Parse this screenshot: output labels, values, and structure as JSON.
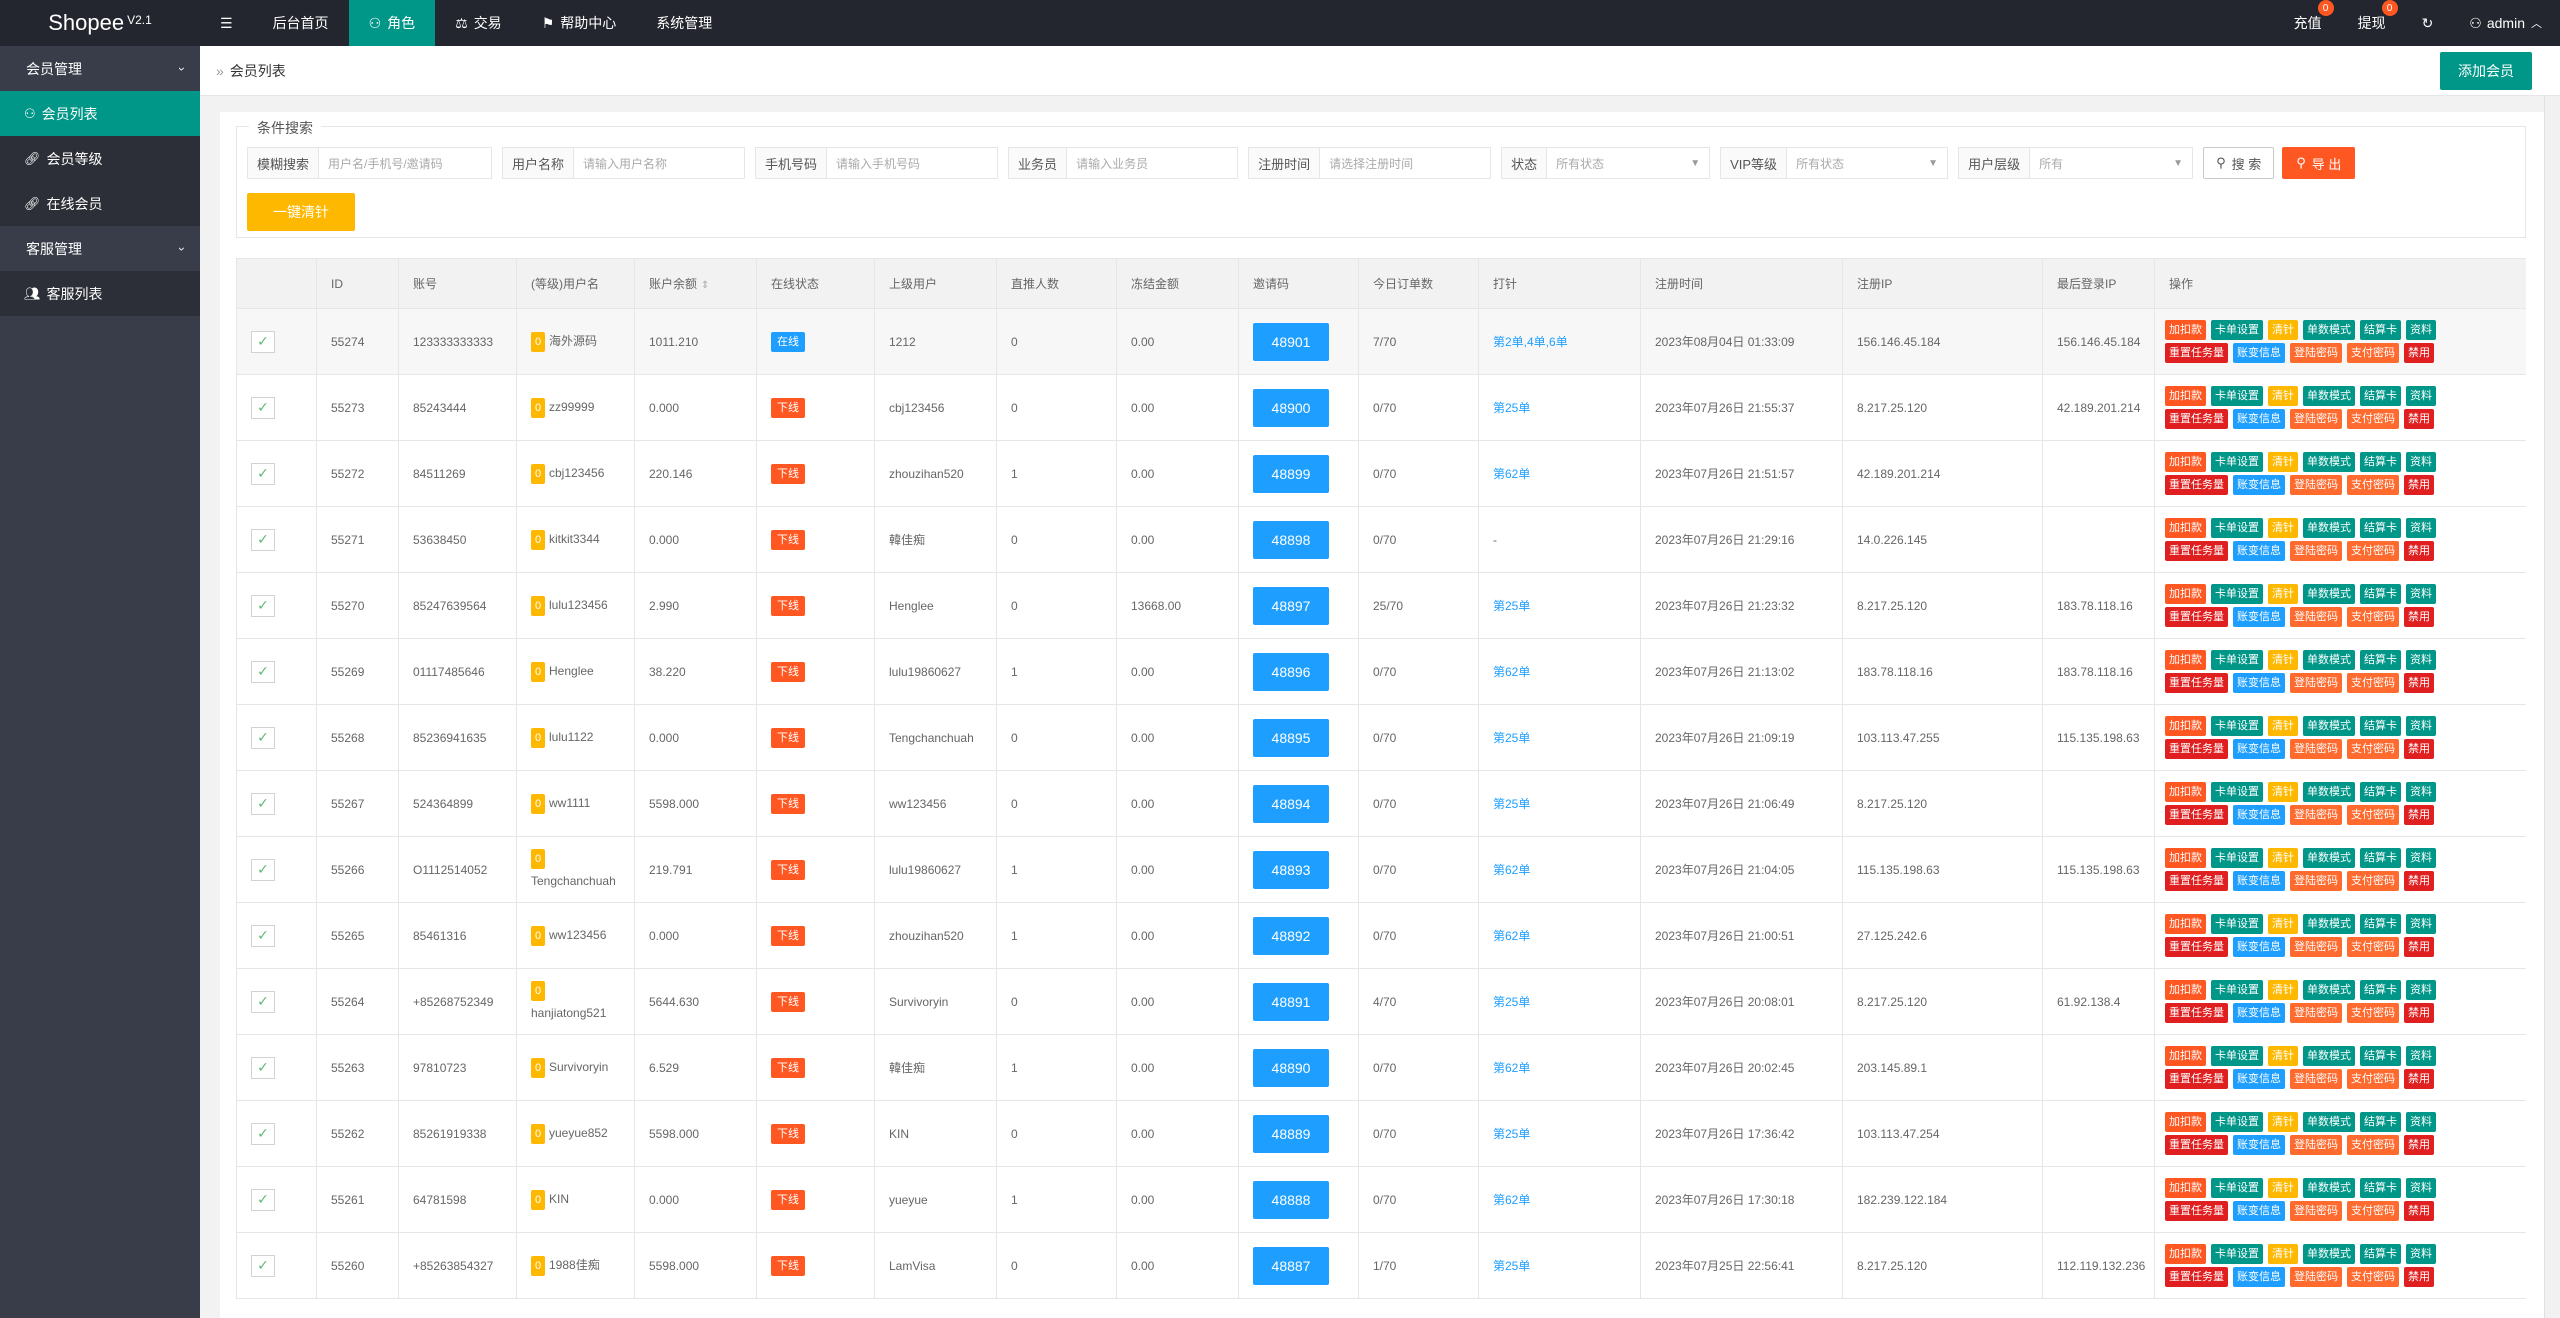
{
  "header": {
    "logo": "Shopee",
    "version": "V2.1",
    "menu_icon": "☰",
    "nav": [
      {
        "label": "后台首页",
        "icon": ""
      },
      {
        "label": "角色",
        "icon": "user-icon"
      },
      {
        "label": "交易",
        "icon": "scale-icon"
      },
      {
        "label": "帮助中心",
        "icon": "flag-icon"
      },
      {
        "label": "系统管理",
        "icon": ""
      }
    ],
    "recharge": "充值",
    "recharge_count": "0",
    "withdraw": "提现",
    "withdraw_count": "0",
    "user": "admin"
  },
  "sidebar": {
    "group1": "会员管理",
    "items1": [
      "会员列表",
      "会员等级",
      "在线会员"
    ],
    "group2": "客服管理",
    "items2": [
      "客服列表"
    ]
  },
  "breadcrumb": "会员列表",
  "add_button": "添加会员",
  "search": {
    "legend": "条件搜索",
    "fuzzy_label": "模糊搜索",
    "fuzzy_placeholder": "用户名/手机号/邀请码",
    "username_label": "用户名称",
    "username_placeholder": "请输入用户名称",
    "phone_label": "手机号码",
    "phone_placeholder": "请输入手机号码",
    "agent_label": "业务员",
    "agent_placeholder": "请输入业务员",
    "regtime_label": "注册时间",
    "regtime_placeholder": "请选择注册时间",
    "status_label": "状态",
    "status_value": "所有状态",
    "vip_label": "VIP等级",
    "vip_value": "所有状态",
    "tier_label": "用户层级",
    "tier_value": "所有",
    "search_btn": "搜 索",
    "export_btn": "导 出",
    "clear_btn": "一键清针"
  },
  "table": {
    "columns": [
      "",
      "ID",
      "账号",
      "(等级)用户名",
      "账户余额",
      "在线状态",
      "上级用户",
      "直推人数",
      "冻结金额",
      "邀请码",
      "今日订单数",
      "打针",
      "注册时间",
      "注册IP",
      "最后登录IP",
      "操作"
    ],
    "ops_row1": [
      "加扣款",
      "卡单设置",
      "清针",
      "单数模式",
      "结算卡",
      "资料"
    ],
    "ops_row2": [
      "重置任务量",
      "账变信息",
      "登陆密码",
      "支付密码",
      "禁用"
    ],
    "rows": [
      {
        "id": "55274",
        "account": "123333333333",
        "level": "0",
        "username": "海外源码",
        "balance": "1011.210",
        "status": "在线",
        "online": true,
        "parent": "1212",
        "direct": "0",
        "frozen": "0.00",
        "invite": "48901",
        "orders": "7/70",
        "pin": "第2单,4单,6单",
        "regtime": "2023年08月04日 01:33:09",
        "regip": "156.146.45.184",
        "lastip": "156.146.45.184"
      },
      {
        "id": "55273",
        "account": "85243444",
        "level": "0",
        "username": "zz99999",
        "balance": "0.000",
        "status": "下线",
        "online": false,
        "parent": "cbj123456",
        "direct": "0",
        "frozen": "0.00",
        "invite": "48900",
        "orders": "0/70",
        "pin": "第25单",
        "regtime": "2023年07月26日 21:55:37",
        "regip": "8.217.25.120",
        "lastip": "42.189.201.214"
      },
      {
        "id": "55272",
        "account": "84511269",
        "level": "0",
        "username": "cbj123456",
        "balance": "220.146",
        "status": "下线",
        "online": false,
        "parent": "zhouzihan520",
        "direct": "1",
        "frozen": "0.00",
        "invite": "48899",
        "orders": "0/70",
        "pin": "第62单",
        "regtime": "2023年07月26日 21:51:57",
        "regip": "42.189.201.214",
        "lastip": ""
      },
      {
        "id": "55271",
        "account": "53638450",
        "level": "0",
        "username": "kitkit3344",
        "balance": "0.000",
        "status": "下线",
        "online": false,
        "parent": "韓佳痴",
        "direct": "0",
        "frozen": "0.00",
        "invite": "48898",
        "orders": "0/70",
        "pin": "-",
        "regtime": "2023年07月26日 21:29:16",
        "regip": "14.0.226.145",
        "lastip": ""
      },
      {
        "id": "55270",
        "account": "85247639564",
        "level": "0",
        "username": "lulu123456",
        "balance": "2.990",
        "status": "下线",
        "online": false,
        "parent": "Henglee",
        "direct": "0",
        "frozen": "13668.00",
        "invite": "48897",
        "orders": "25/70",
        "pin": "第25单",
        "regtime": "2023年07月26日 21:23:32",
        "regip": "8.217.25.120",
        "lastip": "183.78.118.16"
      },
      {
        "id": "55269",
        "account": "01117485646",
        "level": "0",
        "username": "Henglee",
        "balance": "38.220",
        "status": "下线",
        "online": false,
        "parent": "lulu19860627",
        "direct": "1",
        "frozen": "0.00",
        "invite": "48896",
        "orders": "0/70",
        "pin": "第62单",
        "regtime": "2023年07月26日 21:13:02",
        "regip": "183.78.118.16",
        "lastip": "183.78.118.16"
      },
      {
        "id": "55268",
        "account": "85236941635",
        "level": "0",
        "username": "lulu1122",
        "balance": "0.000",
        "status": "下线",
        "online": false,
        "parent": "Tengchanchuah",
        "direct": "0",
        "frozen": "0.00",
        "invite": "48895",
        "orders": "0/70",
        "pin": "第25单",
        "regtime": "2023年07月26日 21:09:19",
        "regip": "103.113.47.255",
        "lastip": "115.135.198.63"
      },
      {
        "id": "55267",
        "account": "524364899",
        "level": "0",
        "username": "ww1111",
        "balance": "5598.000",
        "status": "下线",
        "online": false,
        "parent": "ww123456",
        "direct": "0",
        "frozen": "0.00",
        "invite": "48894",
        "orders": "0/70",
        "pin": "第25单",
        "regtime": "2023年07月26日 21:06:49",
        "regip": "8.217.25.120",
        "lastip": ""
      },
      {
        "id": "55266",
        "account": "O1112514052",
        "level": "0",
        "username": "Tengchanchuah",
        "balance": "219.791",
        "status": "下线",
        "online": false,
        "parent": "lulu19860627",
        "direct": "1",
        "frozen": "0.00",
        "invite": "48893",
        "orders": "0/70",
        "pin": "第62单",
        "regtime": "2023年07月26日 21:04:05",
        "regip": "115.135.198.63",
        "lastip": "115.135.198.63",
        "wrap": true
      },
      {
        "id": "55265",
        "account": "85461316",
        "level": "0",
        "username": "ww123456",
        "balance": "0.000",
        "status": "下线",
        "online": false,
        "parent": "zhouzihan520",
        "direct": "1",
        "frozen": "0.00",
        "invite": "48892",
        "orders": "0/70",
        "pin": "第62单",
        "regtime": "2023年07月26日 21:00:51",
        "regip": "27.125.242.6",
        "lastip": ""
      },
      {
        "id": "55264",
        "account": "+85268752349",
        "level": "0",
        "username": "hanjiatong521",
        "balance": "5644.630",
        "status": "下线",
        "online": false,
        "parent": "Survivoryin",
        "direct": "0",
        "frozen": "0.00",
        "invite": "48891",
        "orders": "4/70",
        "pin": "第25单",
        "regtime": "2023年07月26日 20:08:01",
        "regip": "8.217.25.120",
        "lastip": "61.92.138.4",
        "wrap": true
      },
      {
        "id": "55263",
        "account": "97810723",
        "level": "0",
        "username": "Survivoryin",
        "balance": "6.529",
        "status": "下线",
        "online": false,
        "parent": "韓佳痴",
        "direct": "1",
        "frozen": "0.00",
        "invite": "48890",
        "orders": "0/70",
        "pin": "第62单",
        "regtime": "2023年07月26日 20:02:45",
        "regip": "203.145.89.1",
        "lastip": ""
      },
      {
        "id": "55262",
        "account": "85261919338",
        "level": "0",
        "username": "yueyue852",
        "balance": "5598.000",
        "status": "下线",
        "online": false,
        "parent": "KIN",
        "direct": "0",
        "frozen": "0.00",
        "invite": "48889",
        "orders": "0/70",
        "pin": "第25单",
        "regtime": "2023年07月26日 17:36:42",
        "regip": "103.113.47.254",
        "lastip": ""
      },
      {
        "id": "55261",
        "account": "64781598",
        "level": "0",
        "username": "KIN",
        "balance": "0.000",
        "status": "下线",
        "online": false,
        "parent": "yueyue",
        "direct": "1",
        "frozen": "0.00",
        "invite": "48888",
        "orders": "0/70",
        "pin": "第62单",
        "regtime": "2023年07月26日 17:30:18",
        "regip": "182.239.122.184",
        "lastip": ""
      },
      {
        "id": "55260",
        "account": "+85263854327",
        "level": "0",
        "username": "1988佳痴",
        "balance": "5598.000",
        "status": "下线",
        "online": false,
        "parent": "LamVisa",
        "direct": "0",
        "frozen": "0.00",
        "invite": "48887",
        "orders": "1/70",
        "pin": "第25单",
        "regtime": "2023年07月25日 22:56:41",
        "regip": "8.217.25.120",
        "lastip": "112.119.132.236"
      }
    ]
  },
  "colors": {
    "primary": "#009688",
    "orange": "#ff5722",
    "yellow": "#ffb800",
    "blue": "#1e9fff",
    "red": "#e02020",
    "dark": "#23262e",
    "sidebar": "#393d49"
  }
}
